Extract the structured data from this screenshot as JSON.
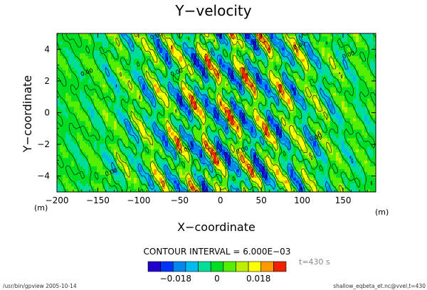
{
  "chart_data": {
    "type": "heatmap",
    "title": "Y−velocity",
    "xlabel": "X−coordinate",
    "ylabel": "Y−coordinate",
    "x_unit": "(m)",
    "y_unit": "(m)",
    "xlim": [
      -200,
      190
    ],
    "ylim": [
      -5,
      5
    ],
    "x_ticks": [
      "−200",
      "−150",
      "−100",
      "−50",
      "0",
      "50",
      "100",
      "150"
    ],
    "x_tick_values": [
      -200,
      -150,
      -100,
      -50,
      0,
      50,
      100,
      150
    ],
    "y_ticks": [
      "4",
      "2",
      "0",
      "−2",
      "−4"
    ],
    "y_tick_values": [
      4,
      2,
      0,
      -2,
      -4
    ],
    "contour_label": "0.00",
    "contour_interval_text": "CONTOUR INTERVAL = 6.000E−03",
    "time_label": "t=430 s",
    "colorbar": {
      "levels_value_range": [
        -0.03,
        0.03
      ],
      "n_levels": 11,
      "colors": [
        "#2200cc",
        "#0033ff",
        "#0088ee",
        "#00bbee",
        "#00dd99",
        "#00dd22",
        "#55ee00",
        "#bbee00",
        "#ffff00",
        "#ff9900",
        "#ee2200"
      ],
      "tick_labels": [
        "−0.018",
        "0",
        "0.018"
      ],
      "tick_values": [
        -0.018,
        0,
        0.018
      ]
    },
    "grid": false
  },
  "footer": {
    "left": "/usr/bin/gpview   2005-10-14",
    "right": "shallow_eqbeta_et.nc@vvel,t=430"
  }
}
